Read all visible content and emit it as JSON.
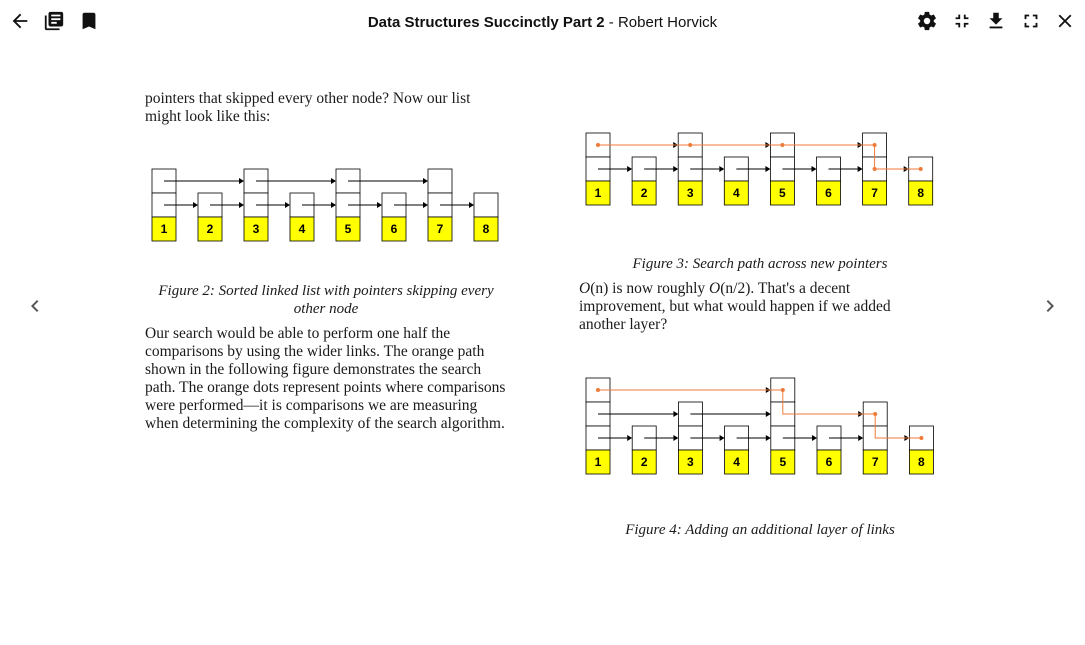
{
  "header": {
    "book_title": "Data Structures Succinctly Part 2",
    "separator": " - ",
    "author": "Robert Horvick"
  },
  "left_column": {
    "intro_text": "pointers that skipped every other node? Now our list might look like this:",
    "figure2": {
      "caption": "Figure 2: Sorted linked list with pointers skipping every other node",
      "node_labels": [
        "1",
        "2",
        "3",
        "4",
        "5",
        "6",
        "7",
        "8"
      ]
    },
    "body_text": "Our search would be able to perform one half the comparisons by using the wider links. The orange path shown in the following figure demonstrates the search path. The orange dots represent points where comparisons were performed—it is comparisons we are measuring when determining the complexity of the search algorithm."
  },
  "right_column": {
    "figure3": {
      "caption": "Figure 3: Search path across new pointers",
      "node_labels": [
        "1",
        "2",
        "3",
        "4",
        "5",
        "6",
        "7",
        "8"
      ]
    },
    "complexity_text": {
      "o1": "O",
      "n1": "(n)",
      "mid": " is now roughly ",
      "o2": "O",
      "n2": "(n/2)",
      "rest": ". That's a decent improvement, but what would happen if we added another layer?"
    },
    "figure4": {
      "caption": "Figure 4: Adding an additional layer of links",
      "node_labels": [
        "1",
        "2",
        "3",
        "4",
        "5",
        "6",
        "7",
        "8"
      ]
    }
  },
  "colors": {
    "node_fill": "#ffff00",
    "path": "#f07a38",
    "link": "#000000",
    "icon": "#111111",
    "arrow": "#555555"
  },
  "icons": {
    "back": "arrow-left-icon",
    "library": "library-icon",
    "bookmark": "bookmark-icon",
    "settings": "gear-icon",
    "fullscreen_exit": "fullscreen-exit-icon",
    "download": "download-icon",
    "fullscreen": "fullscreen-icon",
    "close": "close-icon",
    "prev": "chevron-left-icon",
    "next": "chevron-right-icon"
  }
}
